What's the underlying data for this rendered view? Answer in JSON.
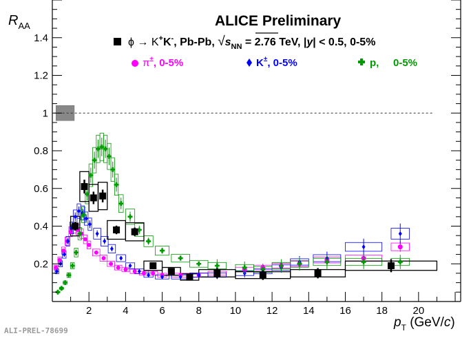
{
  "header": {
    "title": "ALICE Preliminary",
    "phi_prefix": "ϕ → K",
    "phi_sup1": "+",
    "phi_k": "K",
    "phi_sup2": "-",
    "phi_mid": ", Pb-Pb, ",
    "sqrt": "√",
    "s": "s",
    "nn": "NN",
    "phi_energy": " = 2.76 TeV, |",
    "y": "y",
    "phi_tail": "| < 0.5, 0-5%"
  },
  "legend": {
    "pi_label": "π",
    "pi_sup": "±",
    "pi_tail": ", 0-5%",
    "k_label": "K",
    "k_sup": "±",
    "k_tail": ", 0-5%",
    "p_label": "p,",
    "p_tail": "0-5%"
  },
  "footer": {
    "tag": "ALI-PREL-78699"
  },
  "colors": {
    "pi": "#ff00ff",
    "k": "#0000ff",
    "p": "#009900",
    "phi": "#000000",
    "syst_band": "#888888"
  },
  "chart_data": {
    "type": "scatter",
    "title": "ALICE Preliminary",
    "ylabel": "R_AA",
    "xlabel": "p_T (GeV/c)",
    "xlim": [
      0,
      22.3
    ],
    "ylim": [
      0,
      1.6
    ],
    "x_ticks": [
      2,
      4,
      6,
      8,
      10,
      12,
      14,
      16,
      18,
      20
    ],
    "y_ticks": [
      0.2,
      0.4,
      0.6,
      0.8,
      1.0,
      1.2,
      1.4
    ],
    "reference_line": 1.0,
    "series": [
      {
        "name": "phi (K+K-), Pb-Pb, 0-5%",
        "x": [
          1.25,
          1.75,
          2.25,
          2.75,
          3.5,
          4.5,
          5.5,
          6.5,
          7.5,
          9.0,
          11.5,
          14.5,
          18.5
        ],
        "y": [
          0.4,
          0.61,
          0.55,
          0.56,
          0.38,
          0.37,
          0.19,
          0.16,
          0.13,
          0.15,
          0.14,
          0.15,
          0.19
        ]
      },
      {
        "name": "pi±, 0-5%",
        "x": [
          0.2,
          0.4,
          0.6,
          0.8,
          1.0,
          1.2,
          1.4,
          1.6,
          1.8,
          2.0,
          2.4,
          2.8,
          3.2,
          3.6,
          4.0,
          4.5,
          5.0,
          5.5,
          6.0,
          7.0,
          8.0,
          9.0,
          10.5,
          11.5,
          12.5,
          13.5,
          15.0,
          17.0,
          19.0
        ],
        "y": [
          0.18,
          0.22,
          0.27,
          0.32,
          0.37,
          0.39,
          0.38,
          0.36,
          0.33,
          0.3,
          0.26,
          0.23,
          0.2,
          0.18,
          0.17,
          0.16,
          0.15,
          0.15,
          0.14,
          0.14,
          0.14,
          0.15,
          0.17,
          0.18,
          0.19,
          0.2,
          0.22,
          0.23,
          0.29
        ]
      },
      {
        "name": "K±, 0-5%",
        "x": [
          0.25,
          0.45,
          0.65,
          0.85,
          1.05,
          1.25,
          1.45,
          1.65,
          1.85,
          2.05,
          2.45,
          2.85,
          3.25,
          3.75,
          4.25,
          4.75,
          5.25,
          6.0,
          7.0,
          8.0,
          9.0,
          10.5,
          11.5,
          12.5,
          13.5,
          15.0,
          17.0,
          19.0
        ],
        "y": [
          0.16,
          0.2,
          0.25,
          0.32,
          0.39,
          0.45,
          0.48,
          0.47,
          0.44,
          0.41,
          0.36,
          0.32,
          0.28,
          0.23,
          0.19,
          0.16,
          0.14,
          0.13,
          0.13,
          0.14,
          0.14,
          0.15,
          0.16,
          0.18,
          0.21,
          0.23,
          0.29,
          0.36
        ]
      },
      {
        "name": "p, 0-5%",
        "x": [
          0.3,
          0.5,
          0.7,
          0.9,
          1.1,
          1.3,
          1.5,
          1.7,
          1.9,
          2.1,
          2.3,
          2.5,
          2.7,
          2.9,
          3.1,
          3.3,
          3.5,
          3.75,
          4.25,
          4.75,
          5.25,
          6.0,
          7.0,
          8.0,
          9.0,
          10.5,
          11.5,
          12.5,
          13.5,
          15.0,
          17.0,
          19.0
        ],
        "y": [
          0.05,
          0.07,
          0.1,
          0.14,
          0.19,
          0.26,
          0.36,
          0.46,
          0.57,
          0.67,
          0.75,
          0.81,
          0.82,
          0.81,
          0.77,
          0.7,
          0.62,
          0.52,
          0.45,
          0.38,
          0.32,
          0.27,
          0.23,
          0.2,
          0.19,
          0.18,
          0.17,
          0.19,
          0.2,
          0.21,
          0.21,
          0.21
        ]
      }
    ]
  }
}
